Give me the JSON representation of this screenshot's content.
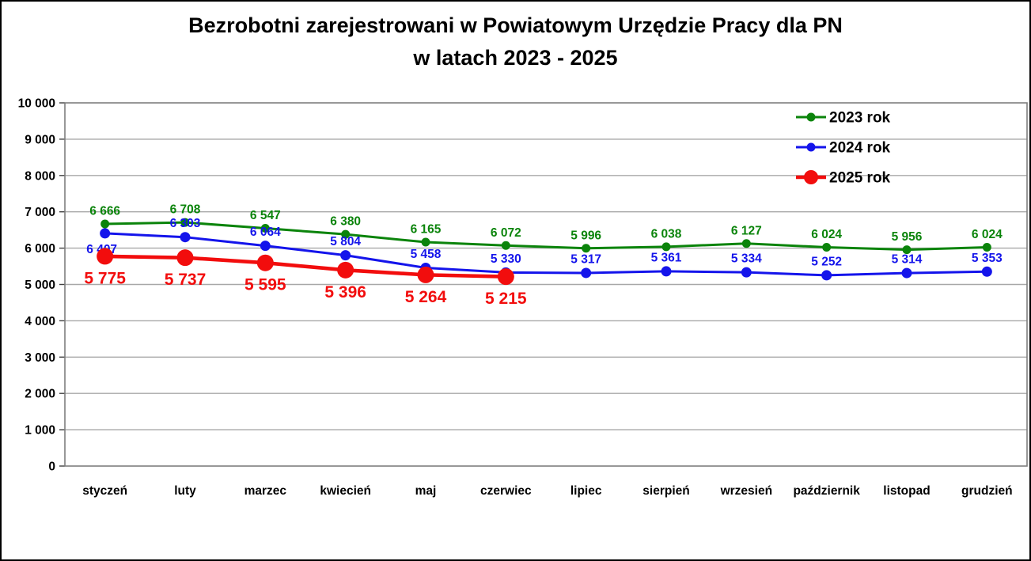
{
  "title": {
    "line1": "Bezrobotni zarejestrowani w Powiatowym Urzędzie Pracy dla PN",
    "line2": "w latach 2023 - 2025"
  },
  "chart_data": {
    "type": "line",
    "title": "Bezrobotni zarejestrowani w Powiatowym Urzędzie Pracy dla PN w latach 2023 - 2025",
    "categories": [
      "styczeń",
      "luty",
      "marzec",
      "kwiecień",
      "maj",
      "czerwiec",
      "lipiec",
      "sierpień",
      "wrzesień",
      "październik",
      "listopad",
      "grudzień"
    ],
    "series": [
      {
        "name": "2023 rok",
        "color": "#0B840B",
        "values": [
          6666,
          6708,
          6547,
          6380,
          6165,
          6072,
          5996,
          6038,
          6127,
          6024,
          5956,
          6024
        ],
        "label_position": "above",
        "emphasis": false
      },
      {
        "name": "2024 rok",
        "color": "#1414EB",
        "values": [
          6407,
          6303,
          6064,
          5804,
          5458,
          5330,
          5317,
          5361,
          5334,
          5252,
          5314,
          5353
        ],
        "label_position": "above",
        "label_position_overrides": {
          "0": "below"
        },
        "emphasis": false
      },
      {
        "name": "2025 rok",
        "color": "#F20D0D",
        "values": [
          5775,
          5737,
          5595,
          5396,
          5264,
          5215,
          null,
          null,
          null,
          null,
          null,
          null
        ],
        "label_position": "below",
        "emphasis": true
      }
    ],
    "ylim": [
      0,
      10000
    ],
    "ytick_step": 1000,
    "grid": true,
    "legend_position": "top-right",
    "xlabel": "",
    "ylabel": ""
  },
  "colors": {
    "grid": "#A8A8A8",
    "plot_border": "#7F7F7F",
    "tick": "#404040",
    "text": "#000000",
    "background": "#FFFFFF",
    "frame_border": "#000000"
  }
}
